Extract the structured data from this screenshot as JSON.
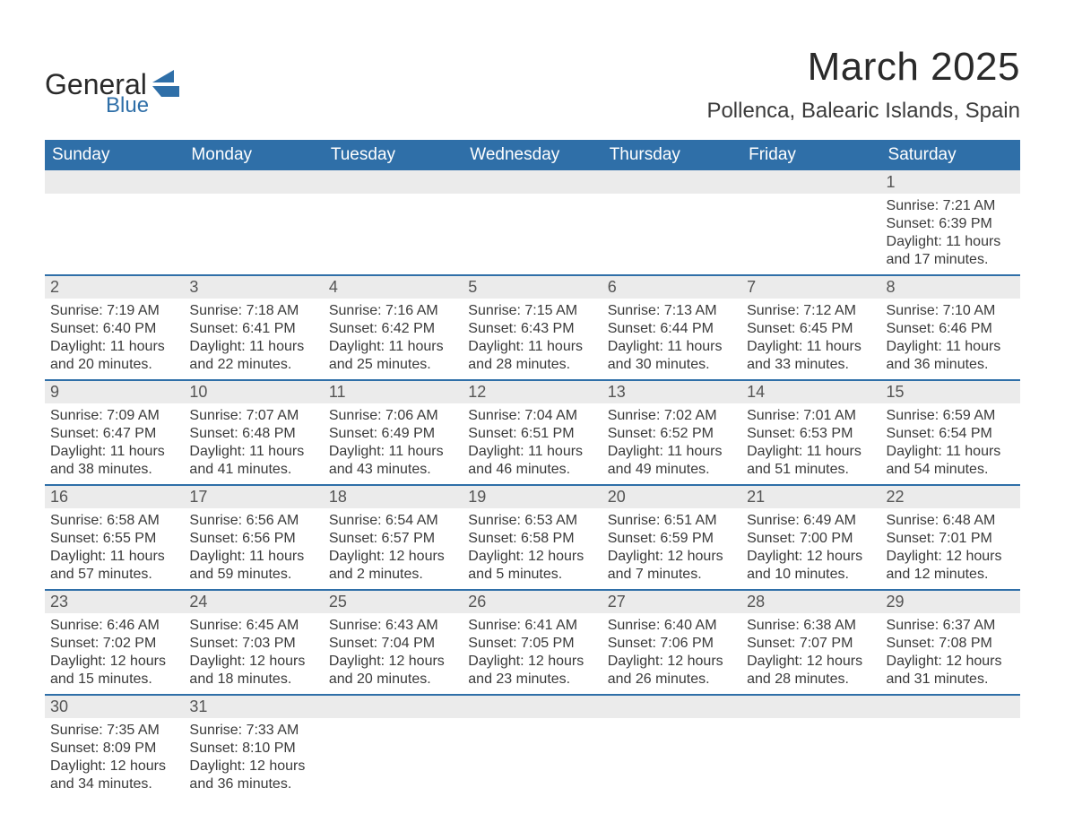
{
  "logo": {
    "word1": "General",
    "word2": "Blue",
    "word1_color": "#2a2a2a",
    "word2_color": "#2f6fa8",
    "mark_color": "#2f6fa8"
  },
  "header": {
    "month_title": "March 2025",
    "location": "Pollenca, Balearic Islands, Spain"
  },
  "styling": {
    "header_bg": "#2f6fa8",
    "header_text": "#ffffff",
    "daynum_bg": "#ebebeb",
    "row_border": "#2f6fa8",
    "body_text": "#3a3a3a",
    "page_bg": "#ffffff",
    "title_fontsize": 44,
    "location_fontsize": 24,
    "weekday_fontsize": 19,
    "daynum_fontsize": 18,
    "detail_fontsize": 16
  },
  "weekdays": [
    "Sunday",
    "Monday",
    "Tuesday",
    "Wednesday",
    "Thursday",
    "Friday",
    "Saturday"
  ],
  "weeks": [
    {
      "days": [
        null,
        null,
        null,
        null,
        null,
        null,
        {
          "n": "1",
          "sunrise": "Sunrise: 7:21 AM",
          "sunset": "Sunset: 6:39 PM",
          "d1": "Daylight: 11 hours",
          "d2": "and 17 minutes."
        }
      ]
    },
    {
      "days": [
        {
          "n": "2",
          "sunrise": "Sunrise: 7:19 AM",
          "sunset": "Sunset: 6:40 PM",
          "d1": "Daylight: 11 hours",
          "d2": "and 20 minutes."
        },
        {
          "n": "3",
          "sunrise": "Sunrise: 7:18 AM",
          "sunset": "Sunset: 6:41 PM",
          "d1": "Daylight: 11 hours",
          "d2": "and 22 minutes."
        },
        {
          "n": "4",
          "sunrise": "Sunrise: 7:16 AM",
          "sunset": "Sunset: 6:42 PM",
          "d1": "Daylight: 11 hours",
          "d2": "and 25 minutes."
        },
        {
          "n": "5",
          "sunrise": "Sunrise: 7:15 AM",
          "sunset": "Sunset: 6:43 PM",
          "d1": "Daylight: 11 hours",
          "d2": "and 28 minutes."
        },
        {
          "n": "6",
          "sunrise": "Sunrise: 7:13 AM",
          "sunset": "Sunset: 6:44 PM",
          "d1": "Daylight: 11 hours",
          "d2": "and 30 minutes."
        },
        {
          "n": "7",
          "sunrise": "Sunrise: 7:12 AM",
          "sunset": "Sunset: 6:45 PM",
          "d1": "Daylight: 11 hours",
          "d2": "and 33 minutes."
        },
        {
          "n": "8",
          "sunrise": "Sunrise: 7:10 AM",
          "sunset": "Sunset: 6:46 PM",
          "d1": "Daylight: 11 hours",
          "d2": "and 36 minutes."
        }
      ]
    },
    {
      "days": [
        {
          "n": "9",
          "sunrise": "Sunrise: 7:09 AM",
          "sunset": "Sunset: 6:47 PM",
          "d1": "Daylight: 11 hours",
          "d2": "and 38 minutes."
        },
        {
          "n": "10",
          "sunrise": "Sunrise: 7:07 AM",
          "sunset": "Sunset: 6:48 PM",
          "d1": "Daylight: 11 hours",
          "d2": "and 41 minutes."
        },
        {
          "n": "11",
          "sunrise": "Sunrise: 7:06 AM",
          "sunset": "Sunset: 6:49 PM",
          "d1": "Daylight: 11 hours",
          "d2": "and 43 minutes."
        },
        {
          "n": "12",
          "sunrise": "Sunrise: 7:04 AM",
          "sunset": "Sunset: 6:51 PM",
          "d1": "Daylight: 11 hours",
          "d2": "and 46 minutes."
        },
        {
          "n": "13",
          "sunrise": "Sunrise: 7:02 AM",
          "sunset": "Sunset: 6:52 PM",
          "d1": "Daylight: 11 hours",
          "d2": "and 49 minutes."
        },
        {
          "n": "14",
          "sunrise": "Sunrise: 7:01 AM",
          "sunset": "Sunset: 6:53 PM",
          "d1": "Daylight: 11 hours",
          "d2": "and 51 minutes."
        },
        {
          "n": "15",
          "sunrise": "Sunrise: 6:59 AM",
          "sunset": "Sunset: 6:54 PM",
          "d1": "Daylight: 11 hours",
          "d2": "and 54 minutes."
        }
      ]
    },
    {
      "days": [
        {
          "n": "16",
          "sunrise": "Sunrise: 6:58 AM",
          "sunset": "Sunset: 6:55 PM",
          "d1": "Daylight: 11 hours",
          "d2": "and 57 minutes."
        },
        {
          "n": "17",
          "sunrise": "Sunrise: 6:56 AM",
          "sunset": "Sunset: 6:56 PM",
          "d1": "Daylight: 11 hours",
          "d2": "and 59 minutes."
        },
        {
          "n": "18",
          "sunrise": "Sunrise: 6:54 AM",
          "sunset": "Sunset: 6:57 PM",
          "d1": "Daylight: 12 hours",
          "d2": "and 2 minutes."
        },
        {
          "n": "19",
          "sunrise": "Sunrise: 6:53 AM",
          "sunset": "Sunset: 6:58 PM",
          "d1": "Daylight: 12 hours",
          "d2": "and 5 minutes."
        },
        {
          "n": "20",
          "sunrise": "Sunrise: 6:51 AM",
          "sunset": "Sunset: 6:59 PM",
          "d1": "Daylight: 12 hours",
          "d2": "and 7 minutes."
        },
        {
          "n": "21",
          "sunrise": "Sunrise: 6:49 AM",
          "sunset": "Sunset: 7:00 PM",
          "d1": "Daylight: 12 hours",
          "d2": "and 10 minutes."
        },
        {
          "n": "22",
          "sunrise": "Sunrise: 6:48 AM",
          "sunset": "Sunset: 7:01 PM",
          "d1": "Daylight: 12 hours",
          "d2": "and 12 minutes."
        }
      ]
    },
    {
      "days": [
        {
          "n": "23",
          "sunrise": "Sunrise: 6:46 AM",
          "sunset": "Sunset: 7:02 PM",
          "d1": "Daylight: 12 hours",
          "d2": "and 15 minutes."
        },
        {
          "n": "24",
          "sunrise": "Sunrise: 6:45 AM",
          "sunset": "Sunset: 7:03 PM",
          "d1": "Daylight: 12 hours",
          "d2": "and 18 minutes."
        },
        {
          "n": "25",
          "sunrise": "Sunrise: 6:43 AM",
          "sunset": "Sunset: 7:04 PM",
          "d1": "Daylight: 12 hours",
          "d2": "and 20 minutes."
        },
        {
          "n": "26",
          "sunrise": "Sunrise: 6:41 AM",
          "sunset": "Sunset: 7:05 PM",
          "d1": "Daylight: 12 hours",
          "d2": "and 23 minutes."
        },
        {
          "n": "27",
          "sunrise": "Sunrise: 6:40 AM",
          "sunset": "Sunset: 7:06 PM",
          "d1": "Daylight: 12 hours",
          "d2": "and 26 minutes."
        },
        {
          "n": "28",
          "sunrise": "Sunrise: 6:38 AM",
          "sunset": "Sunset: 7:07 PM",
          "d1": "Daylight: 12 hours",
          "d2": "and 28 minutes."
        },
        {
          "n": "29",
          "sunrise": "Sunrise: 6:37 AM",
          "sunset": "Sunset: 7:08 PM",
          "d1": "Daylight: 12 hours",
          "d2": "and 31 minutes."
        }
      ]
    },
    {
      "days": [
        {
          "n": "30",
          "sunrise": "Sunrise: 7:35 AM",
          "sunset": "Sunset: 8:09 PM",
          "d1": "Daylight: 12 hours",
          "d2": "and 34 minutes."
        },
        {
          "n": "31",
          "sunrise": "Sunrise: 7:33 AM",
          "sunset": "Sunset: 8:10 PM",
          "d1": "Daylight: 12 hours",
          "d2": "and 36 minutes."
        },
        null,
        null,
        null,
        null,
        null
      ]
    }
  ]
}
